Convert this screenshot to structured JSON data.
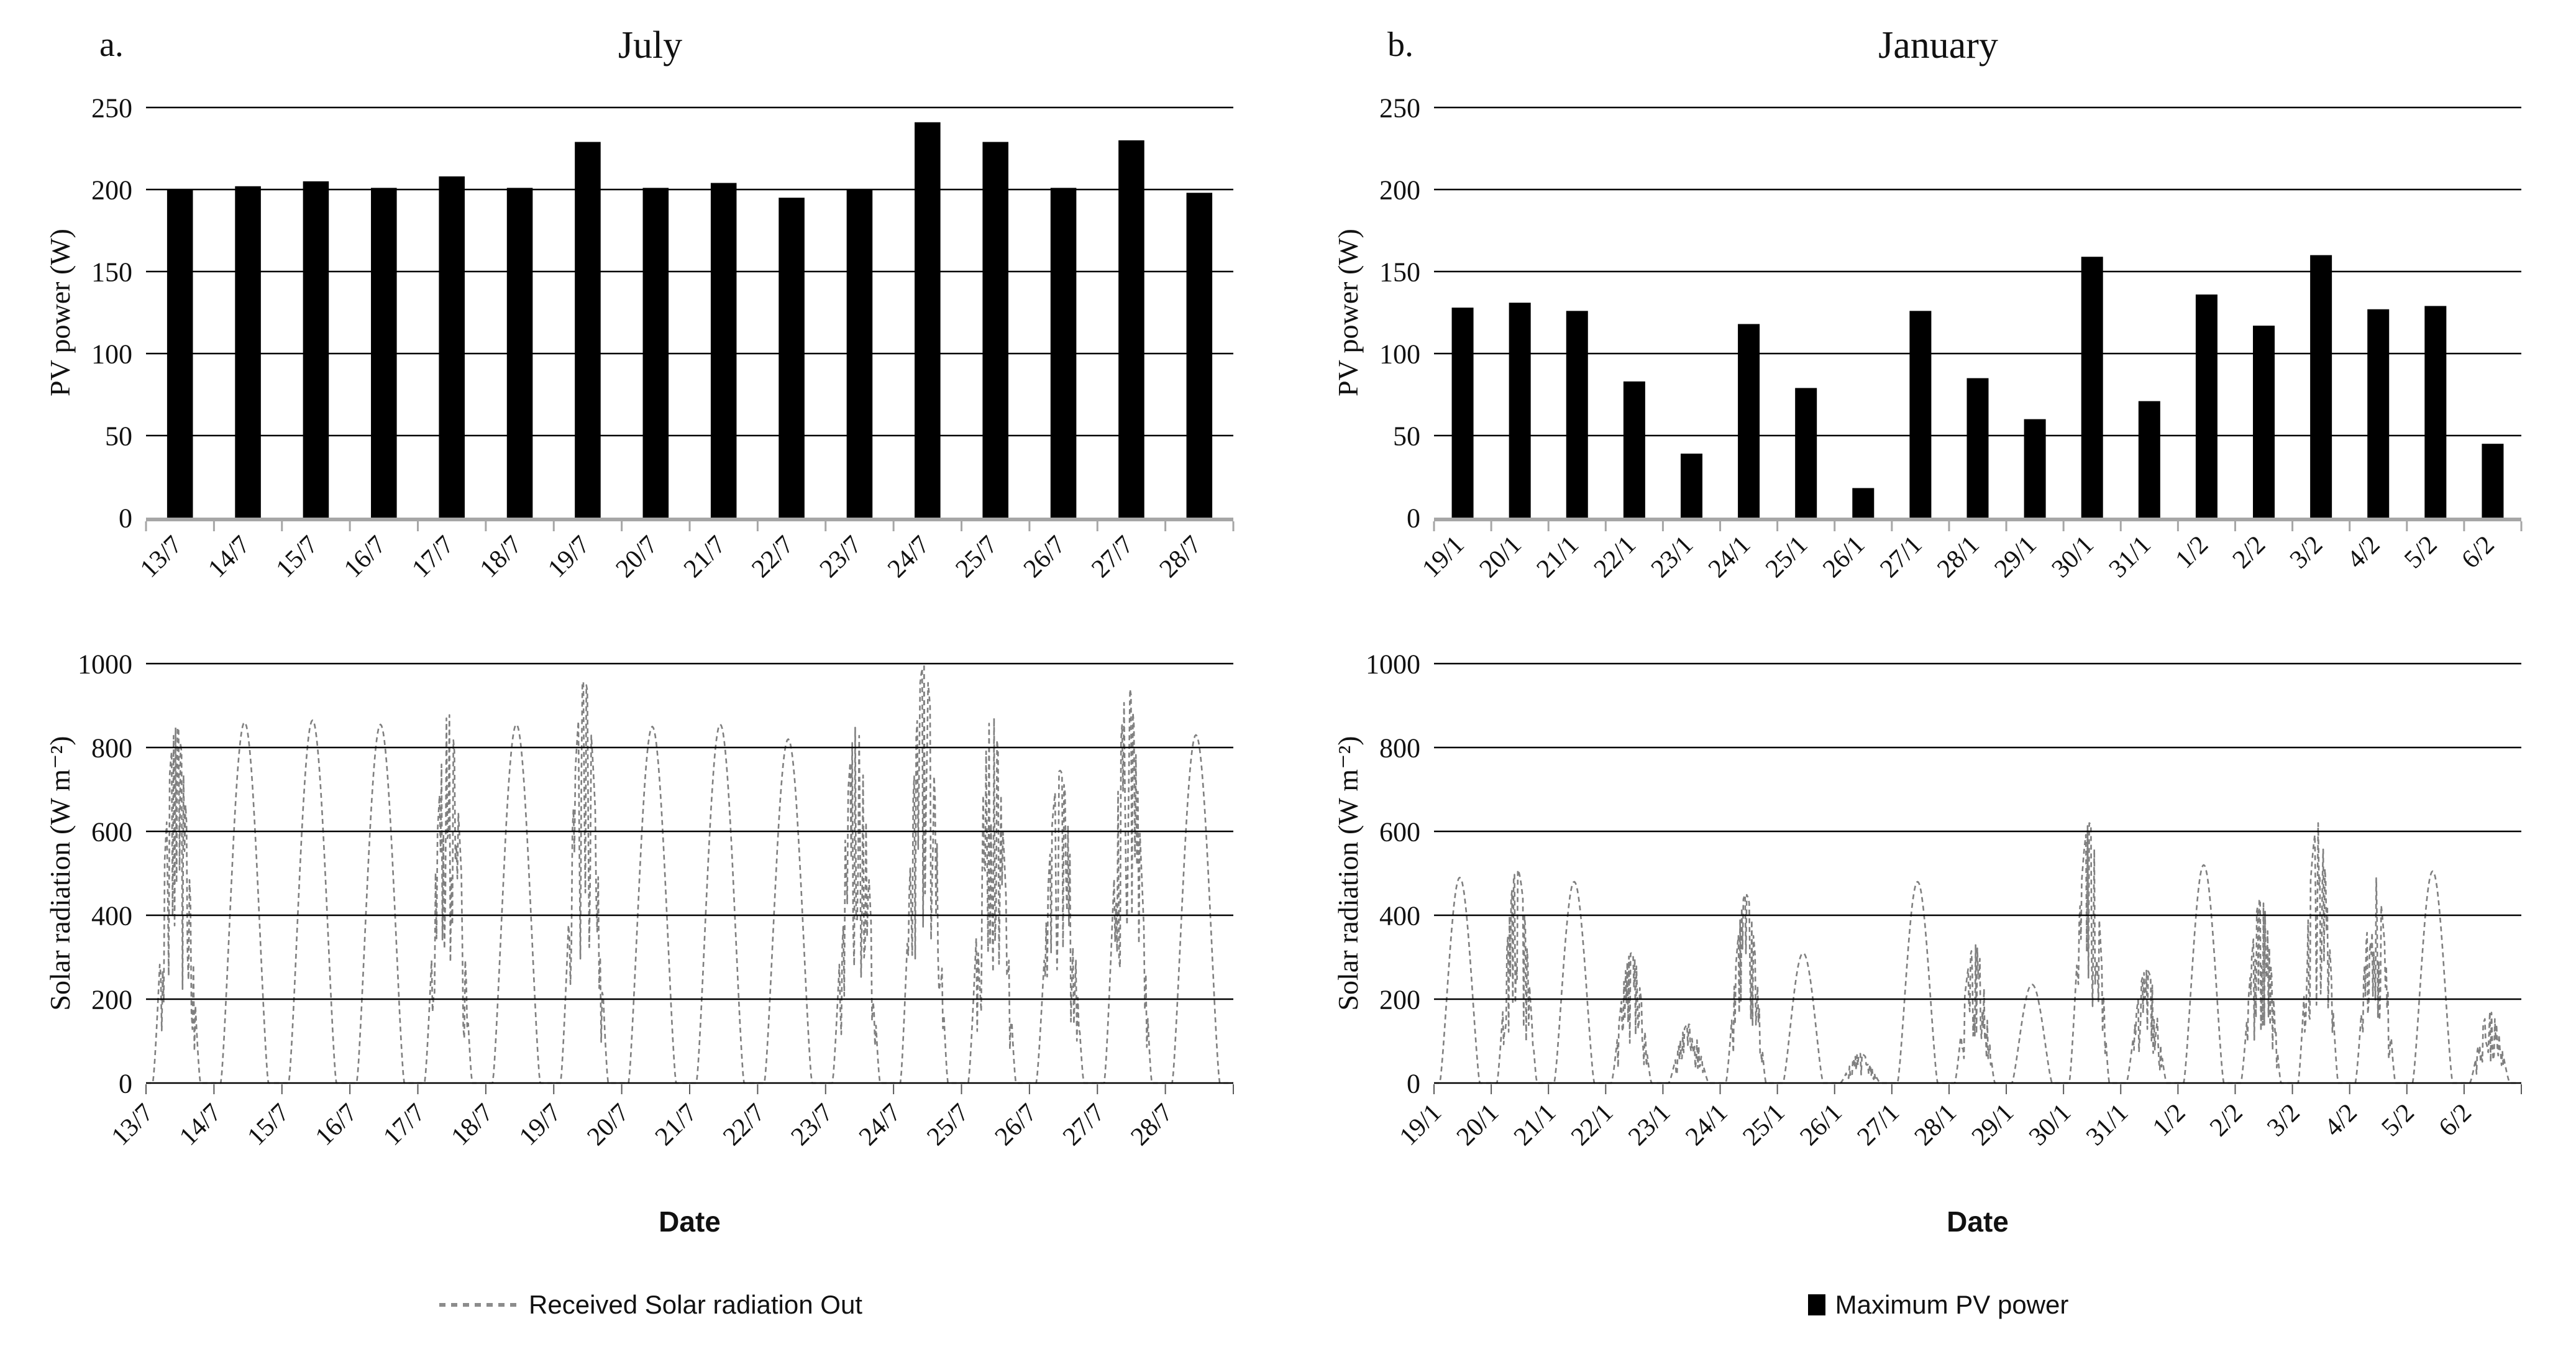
{
  "figure": {
    "panels": [
      {
        "label": "a.",
        "title": "July"
      },
      {
        "label": "b.",
        "title": "January"
      }
    ],
    "legends": {
      "radiation": "Received Solar radiation Out",
      "pv": "Maximum PV power"
    },
    "colors": {
      "bar": "#000000",
      "line": "#7f7f7f",
      "grid": "#000000",
      "baseline": "#a6a6a6",
      "line_ticks": "#595959"
    }
  },
  "chart_data": [
    {
      "id": "july-pv",
      "type": "bar",
      "title": "July",
      "ylabel": "PV power (W)",
      "ylim": [
        0,
        250
      ],
      "ystep": 50,
      "grid": true,
      "legend": "Maximum PV power",
      "categories": [
        "13/7",
        "14/7",
        "15/7",
        "16/7",
        "17/7",
        "18/7",
        "19/7",
        "20/7",
        "21/7",
        "22/7",
        "23/7",
        "24/7",
        "25/7",
        "26/7",
        "27/7",
        "28/7"
      ],
      "values": [
        200,
        202,
        205,
        201,
        208,
        201,
        229,
        201,
        204,
        195,
        200,
        241,
        229,
        201,
        230,
        198
      ]
    },
    {
      "id": "july-radiation",
      "type": "line",
      "xlabel": "Date",
      "ylabel": "Solar radiation (W m⁻²)",
      "ylim": [
        0,
        1000
      ],
      "ystep": 200,
      "grid": true,
      "legend": "Received Solar radiation Out",
      "categories": [
        "13/7",
        "14/7",
        "15/7",
        "16/7",
        "17/7",
        "18/7",
        "19/7",
        "20/7",
        "21/7",
        "22/7",
        "23/7",
        "24/7",
        "25/7",
        "26/7",
        "27/7",
        "28/7"
      ],
      "peak_values": [
        850,
        860,
        865,
        855,
        880,
        855,
        960,
        850,
        855,
        820,
        850,
        1000,
        880,
        745,
        950,
        830
      ],
      "noisy": [
        true,
        false,
        false,
        false,
        true,
        false,
        true,
        false,
        false,
        false,
        true,
        true,
        true,
        true,
        true,
        false
      ]
    },
    {
      "id": "january-pv",
      "type": "bar",
      "title": "January",
      "ylabel": "PV power (W)",
      "ylim": [
        0,
        250
      ],
      "ystep": 50,
      "grid": true,
      "legend": "Maximum PV power",
      "categories": [
        "19/1",
        "20/1",
        "21/1",
        "22/1",
        "23/1",
        "24/1",
        "25/1",
        "26/1",
        "27/1",
        "28/1",
        "29/1",
        "30/1",
        "31/1",
        "1/2",
        "2/2",
        "3/2",
        "4/2",
        "5/2",
        "6/2"
      ],
      "values": [
        128,
        131,
        126,
        83,
        39,
        118,
        79,
        18,
        126,
        85,
        60,
        159,
        71,
        136,
        117,
        160,
        127,
        129,
        45
      ]
    },
    {
      "id": "january-radiation",
      "type": "line",
      "xlabel": "Date",
      "ylabel": "Solar radiation (W m⁻²)",
      "ylim": [
        0,
        1000
      ],
      "ystep": 200,
      "grid": true,
      "legend": "Received Solar radiation Out",
      "categories": [
        "19/1",
        "20/1",
        "21/1",
        "22/1",
        "23/1",
        "24/1",
        "25/1",
        "26/1",
        "27/1",
        "28/1",
        "29/1",
        "30/1",
        "31/1",
        "1/2",
        "2/2",
        "3/2",
        "4/2",
        "5/2",
        "6/2"
      ],
      "peak_values": [
        490,
        510,
        480,
        310,
        140,
        450,
        310,
        70,
        480,
        330,
        235,
        620,
        270,
        520,
        440,
        620,
        490,
        505,
        170
      ],
      "noisy": [
        false,
        true,
        false,
        true,
        true,
        true,
        false,
        true,
        false,
        true,
        false,
        true,
        true,
        false,
        true,
        true,
        true,
        false,
        true
      ]
    }
  ]
}
